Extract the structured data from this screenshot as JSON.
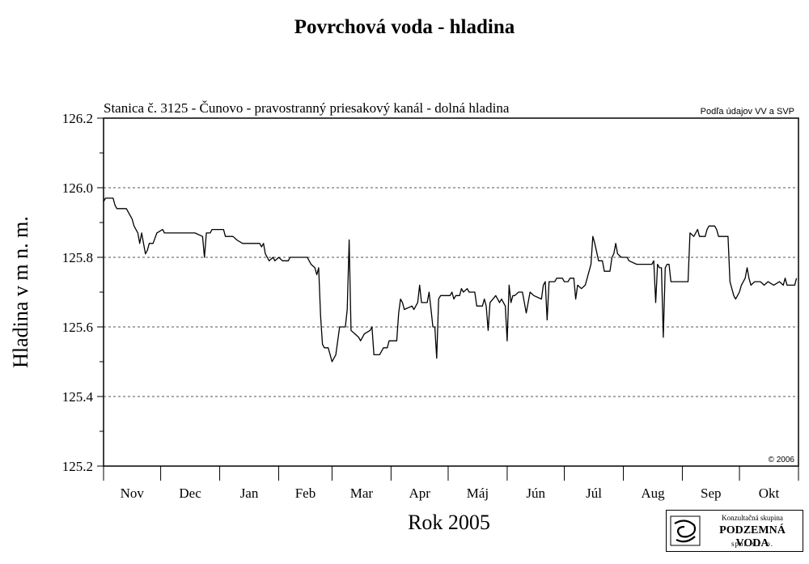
{
  "header": {
    "title": "Povrchová voda - hladina"
  },
  "chart_data": {
    "type": "line",
    "title": "Povrchová voda - hladina",
    "subtitle": "Stanica č. 3125 - Čunovo - pravostranný priesakový kanál - dolná hladina",
    "source_note": "Podľa údajov VV a SVP",
    "copyright": "© 2006",
    "xlabel": "Rok 2005",
    "ylabel": "Hladina v m n. m.",
    "ylim": [
      125.2,
      126.2
    ],
    "yticks": [
      "126.2",
      "126.0",
      "125.8",
      "125.6",
      "125.4",
      "125.2"
    ],
    "grid": "horizontal dashed at 125.4, 125.6, 125.8, 126.0",
    "months": [
      "Nov",
      "Dec",
      "Jan",
      "Feb",
      "Mar",
      "Apr",
      "Máj",
      "Jún",
      "Júl",
      "Aug",
      "Sep",
      "Okt"
    ],
    "xlim_days": [
      0,
      365
    ],
    "series": [
      {
        "values": [
          [
            0,
            125.96
          ],
          [
            1,
            125.97
          ],
          [
            5,
            125.97
          ],
          [
            6,
            125.95
          ],
          [
            7,
            125.94
          ],
          [
            12,
            125.94
          ],
          [
            15,
            125.91
          ],
          [
            16,
            125.89
          ],
          [
            18,
            125.87
          ],
          [
            19,
            125.84
          ],
          [
            20,
            125.87
          ],
          [
            21,
            125.84
          ],
          [
            22,
            125.81
          ],
          [
            23,
            125.82
          ],
          [
            24,
            125.84
          ],
          [
            26,
            125.84
          ],
          [
            28,
            125.87
          ],
          [
            31,
            125.88
          ],
          [
            32,
            125.87
          ],
          [
            40,
            125.87
          ],
          [
            48,
            125.87
          ],
          [
            52,
            125.86
          ],
          [
            53,
            125.8
          ],
          [
            54,
            125.87
          ],
          [
            56,
            125.87
          ],
          [
            57,
            125.88
          ],
          [
            63,
            125.88
          ],
          [
            64,
            125.86
          ],
          [
            68,
            125.86
          ],
          [
            70,
            125.85
          ],
          [
            73,
            125.84
          ],
          [
            82,
            125.84
          ],
          [
            83,
            125.83
          ],
          [
            84,
            125.84
          ],
          [
            85,
            125.81
          ],
          [
            87,
            125.79
          ],
          [
            89,
            125.8
          ],
          [
            90,
            125.79
          ],
          [
            92,
            125.8
          ],
          [
            94,
            125.79
          ],
          [
            97,
            125.79
          ],
          [
            98,
            125.8
          ],
          [
            107,
            125.8
          ],
          [
            109,
            125.78
          ],
          [
            111,
            125.77
          ],
          [
            112,
            125.75
          ],
          [
            113,
            125.77
          ],
          [
            114,
            125.63
          ],
          [
            115,
            125.55
          ],
          [
            116,
            125.54
          ],
          [
            118,
            125.54
          ],
          [
            119,
            125.52
          ],
          [
            120,
            125.5
          ],
          [
            122,
            125.52
          ],
          [
            124,
            125.6
          ],
          [
            127,
            125.6
          ],
          [
            128,
            125.65
          ],
          [
            129,
            125.85
          ],
          [
            130,
            125.59
          ],
          [
            132,
            125.58
          ],
          [
            134,
            125.57
          ],
          [
            135,
            125.56
          ],
          [
            137,
            125.58
          ],
          [
            140,
            125.59
          ],
          [
            141,
            125.6
          ],
          [
            142,
            125.52
          ],
          [
            145,
            125.52
          ],
          [
            147,
            125.54
          ],
          [
            149,
            125.54
          ],
          [
            150,
            125.56
          ],
          [
            154,
            125.56
          ],
          [
            155,
            125.64
          ],
          [
            156,
            125.68
          ],
          [
            157,
            125.67
          ],
          [
            158,
            125.65
          ],
          [
            162,
            125.66
          ],
          [
            163,
            125.65
          ],
          [
            164,
            125.66
          ],
          [
            165,
            125.67
          ],
          [
            166,
            125.72
          ],
          [
            167,
            125.67
          ],
          [
            170,
            125.67
          ],
          [
            171,
            125.7
          ],
          [
            172,
            125.65
          ],
          [
            173,
            125.6
          ],
          [
            174,
            125.6
          ],
          [
            175,
            125.51
          ],
          [
            176,
            125.68
          ],
          [
            177,
            125.69
          ],
          [
            182,
            125.69
          ],
          [
            183,
            125.7
          ],
          [
            184,
            125.68
          ],
          [
            185,
            125.69
          ],
          [
            187,
            125.69
          ],
          [
            188,
            125.71
          ],
          [
            189,
            125.7
          ],
          [
            191,
            125.71
          ],
          [
            192,
            125.7
          ],
          [
            195,
            125.7
          ],
          [
            196,
            125.66
          ],
          [
            199,
            125.66
          ],
          [
            200,
            125.68
          ],
          [
            201,
            125.66
          ],
          [
            202,
            125.59
          ],
          [
            203,
            125.67
          ],
          [
            206,
            125.69
          ],
          [
            208,
            125.67
          ],
          [
            209,
            125.68
          ],
          [
            211,
            125.66
          ],
          [
            212,
            125.56
          ],
          [
            213,
            125.72
          ],
          [
            214,
            125.67
          ],
          [
            215,
            125.69
          ],
          [
            216,
            125.69
          ],
          [
            218,
            125.7
          ],
          [
            220,
            125.7
          ],
          [
            222,
            125.64
          ],
          [
            224,
            125.7
          ],
          [
            226,
            125.69
          ],
          [
            230,
            125.68
          ],
          [
            231,
            125.72
          ],
          [
            232,
            125.73
          ],
          [
            233,
            125.62
          ],
          [
            234,
            125.73
          ],
          [
            237,
            125.73
          ],
          [
            238,
            125.74
          ],
          [
            241,
            125.74
          ],
          [
            242,
            125.73
          ],
          [
            244,
            125.73
          ],
          [
            245,
            125.74
          ],
          [
            247,
            125.74
          ],
          [
            248,
            125.68
          ],
          [
            249,
            125.72
          ],
          [
            251,
            125.71
          ],
          [
            253,
            125.72
          ],
          [
            254,
            125.74
          ],
          [
            256,
            125.78
          ],
          [
            257,
            125.86
          ],
          [
            258,
            125.84
          ],
          [
            260,
            125.79
          ],
          [
            262,
            125.79
          ],
          [
            263,
            125.76
          ],
          [
            266,
            125.76
          ],
          [
            267,
            125.8
          ],
          [
            268,
            125.81
          ],
          [
            269,
            125.84
          ],
          [
            270,
            125.81
          ],
          [
            272,
            125.8
          ],
          [
            275,
            125.8
          ],
          [
            276,
            125.79
          ],
          [
            280,
            125.78
          ],
          [
            288,
            125.78
          ],
          [
            289,
            125.79
          ],
          [
            290,
            125.67
          ],
          [
            291,
            125.78
          ],
          [
            292,
            125.77
          ],
          [
            293,
            125.77
          ],
          [
            294,
            125.57
          ],
          [
            295,
            125.77
          ],
          [
            296,
            125.78
          ],
          [
            297,
            125.78
          ],
          [
            298,
            125.73
          ],
          [
            307,
            125.73
          ],
          [
            308,
            125.87
          ],
          [
            310,
            125.86
          ],
          [
            312,
            125.88
          ],
          [
            313,
            125.86
          ],
          [
            316,
            125.86
          ],
          [
            317,
            125.88
          ],
          [
            318,
            125.89
          ],
          [
            321,
            125.89
          ],
          [
            322,
            125.88
          ],
          [
            323,
            125.86
          ],
          [
            325,
            125.86
          ],
          [
            328,
            125.86
          ],
          [
            329,
            125.73
          ],
          [
            331,
            125.69
          ],
          [
            332,
            125.68
          ],
          [
            334,
            125.7
          ],
          [
            335,
            125.72
          ],
          [
            337,
            125.74
          ],
          [
            338,
            125.77
          ],
          [
            339,
            125.74
          ],
          [
            340,
            125.72
          ],
          [
            342,
            125.73
          ],
          [
            345,
            125.73
          ],
          [
            347,
            125.72
          ],
          [
            349,
            125.73
          ],
          [
            352,
            125.72
          ],
          [
            355,
            125.73
          ],
          [
            357,
            125.72
          ],
          [
            358,
            125.74
          ],
          [
            359,
            125.72
          ],
          [
            363,
            125.72
          ],
          [
            364,
            125.74
          ]
        ]
      }
    ]
  },
  "logo": {
    "line1": "Konzultačná skupina",
    "line2": "PODZEMNÁ VODA",
    "line3": "spol. s r. o."
  }
}
